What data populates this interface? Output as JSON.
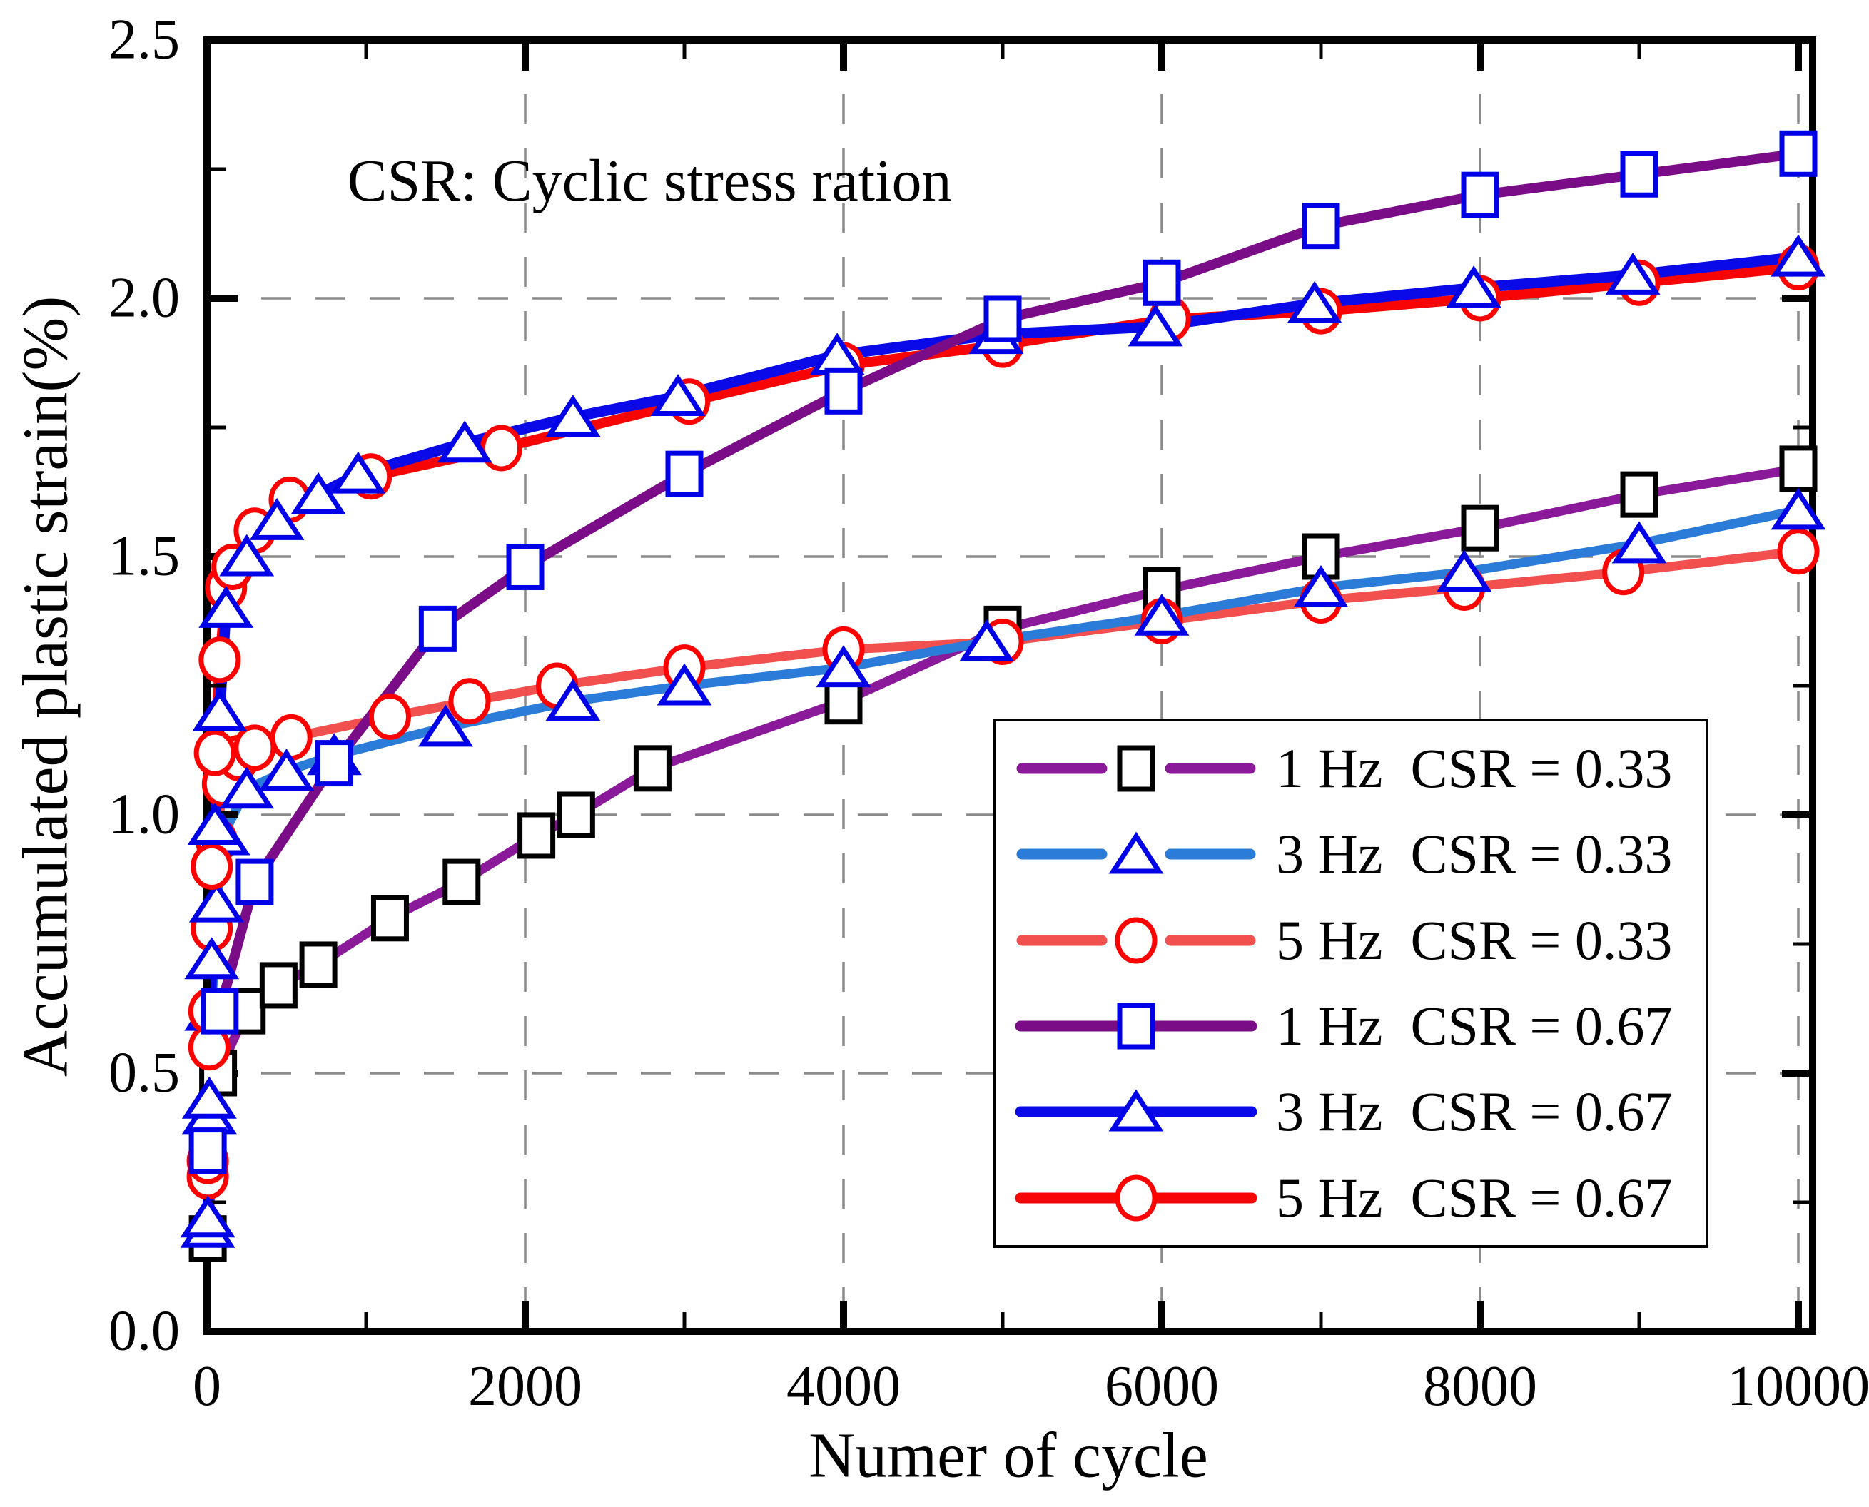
{
  "title": "CSR: Cyclic stress ration",
  "axes": {
    "x": {
      "label": "Numer of cycle",
      "min": 0,
      "max": 10000,
      "ticks": [
        "0",
        "2000",
        "4000",
        "6000",
        "8000",
        "10000"
      ],
      "tick_values": [
        0,
        2000,
        4000,
        6000,
        8000,
        10000
      ],
      "minor_tick_values": [
        1000,
        3000,
        5000,
        7000,
        9000
      ],
      "gridline_values": [
        2000,
        4000,
        6000,
        8000,
        10000
      ]
    },
    "y": {
      "label": "Accumulated plastic strain(%)",
      "min": 0.0,
      "max": 2.5,
      "ticks": [
        "0.0",
        "0.5",
        "1.0",
        "1.5",
        "2.0",
        "2.5"
      ],
      "tick_values": [
        0.0,
        0.5,
        1.0,
        1.5,
        2.0,
        2.5
      ],
      "minor_tick_values": [
        0.25,
        0.75,
        1.25,
        1.75,
        2.25
      ],
      "gridline_values": [
        0.5,
        1.0,
        1.5,
        2.0
      ]
    }
  },
  "grid_color": "#8a8a8a",
  "legend": {
    "items": [
      {
        "label": "1 Hz  CSR = 0.33",
        "line_color": "#8b1a9b",
        "marker": "square",
        "marker_color": "#000000",
        "dashed": true
      },
      {
        "label": "3 Hz  CSR = 0.33",
        "line_color": "#2b7bd9",
        "marker": "triangle",
        "marker_color": "#0000e8",
        "dashed": true
      },
      {
        "label": "5 Hz  CSR = 0.33",
        "line_color": "#f24f4f",
        "marker": "circle",
        "marker_color": "#ff0000",
        "dashed": true
      },
      {
        "label": "1 Hz  CSR = 0.67",
        "line_color": "#7a0d87",
        "marker": "square",
        "marker_color": "#0000e8",
        "dashed": false
      },
      {
        "label": "3 Hz  CSR = 0.67",
        "line_color": "#0a0ae8",
        "marker": "triangle",
        "marker_color": "#0000e8",
        "dashed": false
      },
      {
        "label": "5 Hz  CSR = 0.67",
        "line_color": "#f70505",
        "marker": "circle",
        "marker_color": "#ff0000",
        "dashed": false
      }
    ]
  },
  "chart_data": {
    "type": "line",
    "title": "CSR: Cyclic stress ration",
    "xlabel": "Numer of cycle",
    "ylabel": "Accumulated plastic strain(%)",
    "xlim": [
      0,
      10000
    ],
    "ylim": [
      0.0,
      2.5
    ],
    "grid": true,
    "legend_position": "lower right",
    "series": [
      {
        "name": "1 Hz CSR = 0.33",
        "line_color": "#8b1a9b",
        "marker": "square",
        "marker_color": "#000000",
        "line_width": 13,
        "points": [
          [
            5,
            0.18
          ],
          [
            70,
            0.5
          ],
          [
            250,
            0.62
          ],
          [
            450,
            0.67
          ],
          [
            700,
            0.71
          ],
          [
            1150,
            0.8
          ],
          [
            1600,
            0.87
          ],
          [
            2070,
            0.96
          ],
          [
            2320,
            1.0
          ],
          [
            2800,
            1.09
          ],
          [
            4000,
            1.22
          ],
          [
            5000,
            1.36
          ],
          [
            6000,
            1.435
          ],
          [
            7000,
            1.5
          ],
          [
            8000,
            1.555
          ],
          [
            9000,
            1.62
          ],
          [
            10000,
            1.67
          ]
        ]
      },
      {
        "name": "3 Hz CSR = 0.33",
        "line_color": "#2b7bd9",
        "marker": "triangle",
        "marker_color": "#0000e8",
        "line_width": 13,
        "points": [
          [
            5,
            0.2
          ],
          [
            15,
            0.42
          ],
          [
            30,
            0.62
          ],
          [
            60,
            0.83
          ],
          [
            100,
            0.96
          ],
          [
            250,
            1.05
          ],
          [
            500,
            1.085
          ],
          [
            800,
            1.115
          ],
          [
            1500,
            1.17
          ],
          [
            2300,
            1.22
          ],
          [
            3000,
            1.25
          ],
          [
            4000,
            1.285
          ],
          [
            4900,
            1.335
          ],
          [
            6000,
            1.385
          ],
          [
            7000,
            1.44
          ],
          [
            7900,
            1.47
          ],
          [
            9000,
            1.525
          ],
          [
            10000,
            1.59
          ]
        ]
      },
      {
        "name": "5 Hz CSR = 0.33",
        "line_color": "#f24f4f",
        "marker": "circle",
        "marker_color": "#ff0000",
        "line_width": 13,
        "points": [
          [
            5,
            0.3
          ],
          [
            15,
            0.55
          ],
          [
            30,
            0.78
          ],
          [
            60,
            0.95
          ],
          [
            100,
            1.06
          ],
          [
            200,
            1.11
          ],
          [
            300,
            1.13
          ],
          [
            530,
            1.15
          ],
          [
            1150,
            1.19
          ],
          [
            1650,
            1.22
          ],
          [
            2200,
            1.25
          ],
          [
            3000,
            1.285
          ],
          [
            4000,
            1.32
          ],
          [
            5000,
            1.335
          ],
          [
            6000,
            1.375
          ],
          [
            7000,
            1.415
          ],
          [
            7900,
            1.44
          ],
          [
            8900,
            1.47
          ],
          [
            10000,
            1.51
          ]
        ]
      },
      {
        "name": "1 Hz CSR = 0.67",
        "line_color": "#7a0d87",
        "marker": "square",
        "marker_color": "#0000e8",
        "line_width": 14,
        "points": [
          [
            5,
            0.35
          ],
          [
            80,
            0.62
          ],
          [
            300,
            0.87
          ],
          [
            800,
            1.1
          ],
          [
            1450,
            1.36
          ],
          [
            2000,
            1.48
          ],
          [
            3000,
            1.66
          ],
          [
            4000,
            1.82
          ],
          [
            5000,
            1.96
          ],
          [
            6000,
            2.03
          ],
          [
            7000,
            2.14
          ],
          [
            8000,
            2.2
          ],
          [
            9000,
            2.24
          ],
          [
            10000,
            2.28
          ]
        ]
      },
      {
        "name": "3 Hz CSR = 0.67",
        "line_color": "#0a0ae8",
        "marker": "triangle",
        "marker_color": "#0000e8",
        "line_width": 15,
        "points": [
          [
            5,
            0.22
          ],
          [
            15,
            0.45
          ],
          [
            30,
            0.72
          ],
          [
            50,
            0.98
          ],
          [
            80,
            1.2
          ],
          [
            120,
            1.4
          ],
          [
            250,
            1.5
          ],
          [
            440,
            1.57
          ],
          [
            700,
            1.62
          ],
          [
            950,
            1.66
          ],
          [
            1620,
            1.72
          ],
          [
            2300,
            1.77
          ],
          [
            2960,
            1.81
          ],
          [
            3960,
            1.89
          ],
          [
            4960,
            1.93
          ],
          [
            5960,
            1.945
          ],
          [
            6960,
            1.99
          ],
          [
            7960,
            2.02
          ],
          [
            8960,
            2.045
          ],
          [
            10000,
            2.08
          ]
        ]
      },
      {
        "name": "5 Hz CSR = 0.67",
        "line_color": "#f70505",
        "marker": "circle",
        "marker_color": "#ff0000",
        "line_width": 14,
        "points": [
          [
            5,
            0.33
          ],
          [
            15,
            0.62
          ],
          [
            30,
            0.9
          ],
          [
            50,
            1.12
          ],
          [
            80,
            1.3
          ],
          [
            120,
            1.44
          ],
          [
            160,
            1.48
          ],
          [
            300,
            1.55
          ],
          [
            520,
            1.61
          ],
          [
            1030,
            1.655
          ],
          [
            1850,
            1.71
          ],
          [
            3030,
            1.8
          ],
          [
            4000,
            1.87
          ],
          [
            5000,
            1.91
          ],
          [
            6050,
            1.96
          ],
          [
            7000,
            1.975
          ],
          [
            8000,
            2.0
          ],
          [
            9000,
            2.03
          ],
          [
            10000,
            2.06
          ]
        ]
      }
    ]
  }
}
